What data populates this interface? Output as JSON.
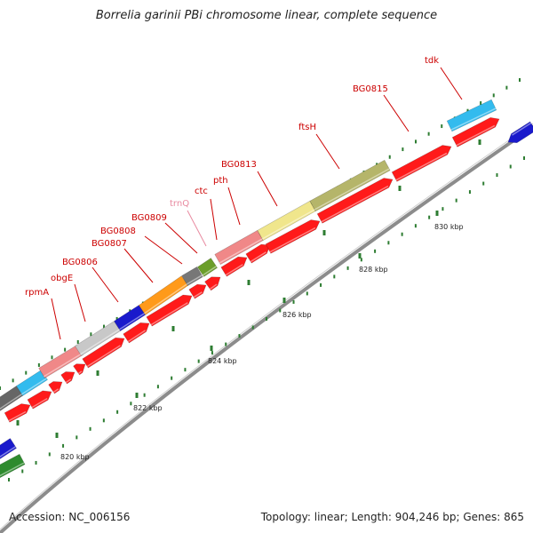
{
  "title": "Borrelia garinii PBi chromosome linear, complete sequence",
  "footer": {
    "accession": "Accession: NC_006156",
    "summary": "Topology: linear; Length: 904,246 bp; Genes: 865"
  },
  "colors": {
    "red": "#ff1a1a",
    "backbone": "#8c8c8c",
    "tick": "#2e7d32",
    "label_red": "#cc0000",
    "label_pink": "#e88aa0"
  },
  "scale_labels": [
    {
      "text": "820 kbp"
    },
    {
      "text": "822 kbp"
    },
    {
      "text": "824 kbp"
    },
    {
      "text": "826 kbp"
    },
    {
      "text": "828 kbp"
    },
    {
      "text": "830 kbp"
    }
  ],
  "gene_labels": [
    {
      "text": "rpmA",
      "color": "#cc0000"
    },
    {
      "text": "obgE",
      "color": "#cc0000"
    },
    {
      "text": "BG0806",
      "color": "#cc0000"
    },
    {
      "text": "BG0807",
      "color": "#cc0000"
    },
    {
      "text": "BG0808",
      "color": "#cc0000"
    },
    {
      "text": "BG0809",
      "color": "#cc0000"
    },
    {
      "text": "trnQ",
      "color": "#e88aa0"
    },
    {
      "text": "ctc",
      "color": "#cc0000"
    },
    {
      "text": "pth",
      "color": "#cc0000"
    },
    {
      "text": "BG0813",
      "color": "#cc0000"
    },
    {
      "text": "ftsH",
      "color": "#cc0000"
    },
    {
      "text": "BG0815",
      "color": "#cc0000"
    },
    {
      "text": "tdk",
      "color": "#cc0000"
    }
  ]
}
